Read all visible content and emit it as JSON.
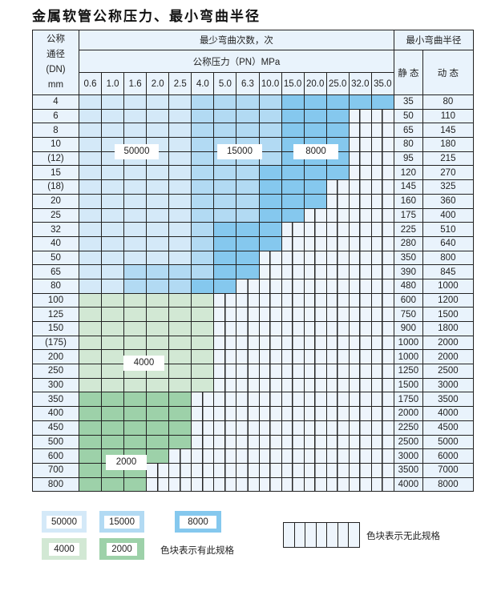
{
  "title": "金属软管公称压力、最小弯曲半径",
  "header": {
    "dn_label": [
      "公称",
      "通径",
      "(DN)",
      "mm"
    ],
    "cycles_label": "最少弯曲次数，次",
    "pressure_label": "公称压力（PN）MPa",
    "radius_label": "最小弯曲半径",
    "static_label": "静 态",
    "dynamic_label": "动 态",
    "pressures": [
      "0.6",
      "1.0",
      "1.6",
      "2.0",
      "2.5",
      "4.0",
      "5.0",
      "6.3",
      "10.0",
      "15.0",
      "20.0",
      "25.0",
      "32.0",
      "35.0"
    ]
  },
  "fill_legend": {
    "a": "50000",
    "b": "15000",
    "c": "8000",
    "d": "4000",
    "e": "2000",
    "h": "none"
  },
  "colors": {
    "a": "#d4e9f8",
    "b": "#b2daf3",
    "c": "#85c8ee",
    "d": "#d2e8d4",
    "e": "#9dd1a9",
    "empty": "#eef5fc"
  },
  "rows": [
    {
      "dn": "4",
      "static": "35",
      "dynamic": "80",
      "fill": "aaaaabbbbccccc"
    },
    {
      "dn": "6",
      "static": "50",
      "dynamic": "110",
      "fill": "aaaaabbbbccchh"
    },
    {
      "dn": "8",
      "static": "65",
      "dynamic": "145",
      "fill": "aaaaabbbbccchh"
    },
    {
      "dn": "10",
      "static": "80",
      "dynamic": "180",
      "fill": "aaaaabbbbccchh"
    },
    {
      "dn": "(12)",
      "static": "95",
      "dynamic": "215",
      "fill": "aaaaabbbbccchh"
    },
    {
      "dn": "15",
      "static": "120",
      "dynamic": "270",
      "fill": "aaaaabbbcccchh"
    },
    {
      "dn": "(18)",
      "static": "145",
      "dynamic": "325",
      "fill": "aaaaabbbccchhh"
    },
    {
      "dn": "20",
      "static": "160",
      "dynamic": "360",
      "fill": "aaaaabbbccchhh"
    },
    {
      "dn": "25",
      "static": "175",
      "dynamic": "400",
      "fill": "aaaaabbbcchhhh"
    },
    {
      "dn": "32",
      "static": "225",
      "dynamic": "510",
      "fill": "aaaaabccchhhhh"
    },
    {
      "dn": "40",
      "static": "280",
      "dynamic": "640",
      "fill": "aaaaabccchhhhh"
    },
    {
      "dn": "50",
      "static": "350",
      "dynamic": "800",
      "fill": "aaaaabcchhhhhh"
    },
    {
      "dn": "65",
      "static": "390",
      "dynamic": "845",
      "fill": "aabbbbcchhhhhh"
    },
    {
      "dn": "80",
      "static": "480",
      "dynamic": "1000",
      "fill": "aabbbcchhhhhhh"
    },
    {
      "dn": "100",
      "static": "600",
      "dynamic": "1200",
      "fill": "ddddddhhhhhhhh"
    },
    {
      "dn": "125",
      "static": "750",
      "dynamic": "1500",
      "fill": "ddddddhhhhhhhh"
    },
    {
      "dn": "150",
      "static": "900",
      "dynamic": "1800",
      "fill": "ddddddhhhhhhhh"
    },
    {
      "dn": "(175)",
      "static": "1000",
      "dynamic": "2000",
      "fill": "ddddddhhhhhhhh"
    },
    {
      "dn": "200",
      "static": "1000",
      "dynamic": "2000",
      "fill": "ddddddhhhhhhhh"
    },
    {
      "dn": "250",
      "static": "1250",
      "dynamic": "2500",
      "fill": "ddddddhhhhhhhh"
    },
    {
      "dn": "300",
      "static": "1500",
      "dynamic": "3000",
      "fill": "ddddddhhhhhhhh"
    },
    {
      "dn": "350",
      "static": "1750",
      "dynamic": "3500",
      "fill": "eeeeehhhhhhhhh"
    },
    {
      "dn": "400",
      "static": "2000",
      "dynamic": "4000",
      "fill": "eeeeehhhhhhhhh"
    },
    {
      "dn": "450",
      "static": "2250",
      "dynamic": "4500",
      "fill": "eeeeehhhhhhhhh"
    },
    {
      "dn": "500",
      "static": "2500",
      "dynamic": "5000",
      "fill": "eeeeehhhhhhhhh"
    },
    {
      "dn": "600",
      "static": "3000",
      "dynamic": "6000",
      "fill": "eeeehhhhhhhhhh"
    },
    {
      "dn": "700",
      "static": "3500",
      "dynamic": "7000",
      "fill": "eeehhhhhhhhhhh"
    },
    {
      "dn": "800",
      "static": "4000",
      "dynamic": "8000",
      "fill": "eeehhhhhhhhhhh"
    }
  ],
  "region_labels": {
    "a": "50000",
    "b": "15000",
    "c": "8000",
    "d": "4000",
    "e": "2000"
  },
  "legend": {
    "items": [
      "50000",
      "15000",
      "8000",
      "4000",
      "2000"
    ],
    "has_spec_text": "色块表示有此规格",
    "no_spec_text": "色块表示无此规格"
  }
}
